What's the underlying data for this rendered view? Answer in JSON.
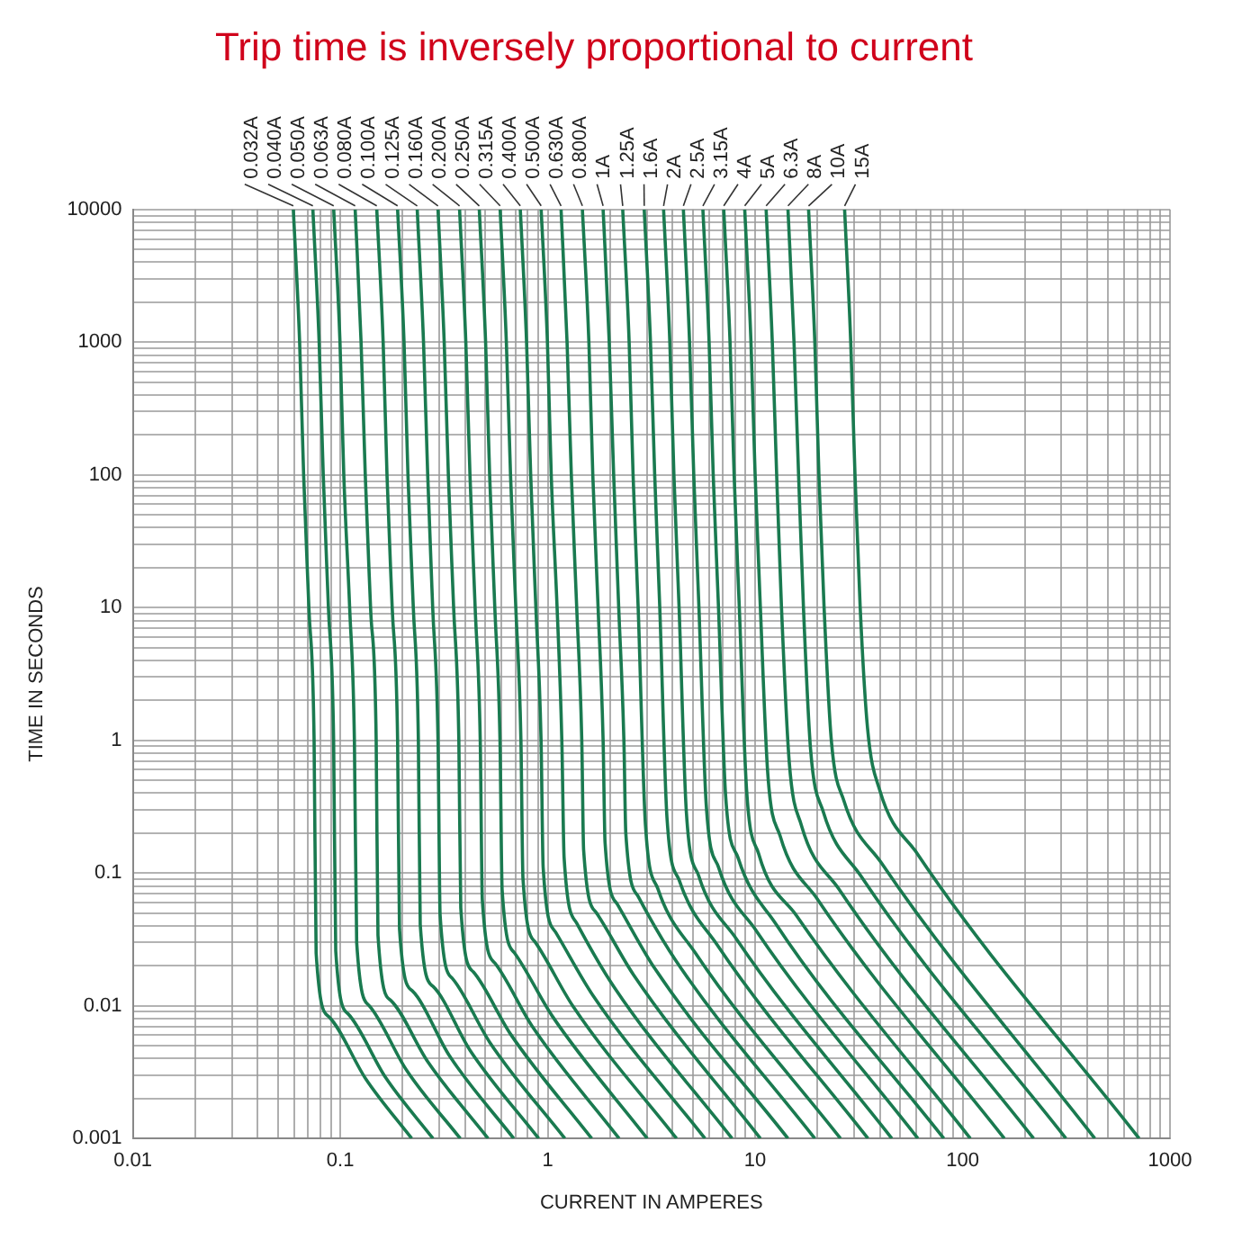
{
  "chart_data": {
    "type": "line",
    "title": "Trip time is inversely proportional to current",
    "xlabel": "CURRENT IN AMPERES",
    "ylabel": "TIME IN SECONDS",
    "log": "xy",
    "grid": true,
    "legend": false,
    "marker": "none",
    "line_style": "solid",
    "xlim": [
      0.01,
      1000
    ],
    "ylim": [
      0.001,
      10000
    ],
    "xticks": [
      0.01,
      {
        "value": 0.02,
        "label": null
      },
      {
        "value": 0.03,
        "label": null
      },
      {
        "value": 0.04,
        "label": null
      },
      {
        "value": 0.05,
        "label": null
      },
      {
        "value": 0.06,
        "label": null
      },
      {
        "value": 0.07,
        "label": null
      },
      {
        "value": 0.08,
        "label": null
      },
      {
        "value": 0.09,
        "label": null
      },
      0.1,
      {
        "value": 0.2,
        "label": null
      },
      {
        "value": 0.3,
        "label": null
      },
      {
        "value": 0.4,
        "label": null
      },
      {
        "value": 0.5,
        "label": null
      },
      {
        "value": 0.6,
        "label": null
      },
      {
        "value": 0.7,
        "label": null
      },
      {
        "value": 0.8,
        "label": null
      },
      {
        "value": 0.9,
        "label": null
      },
      1,
      {
        "value": 2,
        "label": null
      },
      {
        "value": 3,
        "label": null
      },
      {
        "value": 4,
        "label": null
      },
      {
        "value": 5,
        "label": null
      },
      {
        "value": 6,
        "label": null
      },
      {
        "value": 7,
        "label": null
      },
      {
        "value": 8,
        "label": null
      },
      {
        "value": 9,
        "label": null
      },
      10,
      {
        "value": 20,
        "label": null
      },
      {
        "value": 30,
        "label": null
      },
      {
        "value": 40,
        "label": null
      },
      {
        "value": 50,
        "label": null
      },
      {
        "value": 60,
        "label": null
      },
      {
        "value": 70,
        "label": null
      },
      {
        "value": 80,
        "label": null
      },
      {
        "value": 90,
        "label": null
      },
      100,
      {
        "value": 200,
        "label": null
      },
      {
        "value": 300,
        "label": null
      },
      {
        "value": 400,
        "label": null
      },
      {
        "value": 500,
        "label": null
      },
      {
        "value": 600,
        "label": null
      },
      {
        "value": 700,
        "label": null
      },
      {
        "value": 800,
        "label": null
      },
      {
        "value": 900,
        "label": null
      },
      1000
    ],
    "yticks": [
      0.001,
      {
        "value": 0.002,
        "label": null
      },
      {
        "value": 0.003,
        "label": null
      },
      {
        "value": 0.004,
        "label": null
      },
      {
        "value": 0.005,
        "label": null
      },
      {
        "value": 0.006,
        "label": null
      },
      {
        "value": 0.007,
        "label": null
      },
      {
        "value": 0.008,
        "label": null
      },
      {
        "value": 0.009,
        "label": null
      },
      0.01,
      {
        "value": 0.02,
        "label": null
      },
      {
        "value": 0.03,
        "label": null
      },
      {
        "value": 0.04,
        "label": null
      },
      {
        "value": 0.05,
        "label": null
      },
      {
        "value": 0.06,
        "label": null
      },
      {
        "value": 0.07,
        "label": null
      },
      {
        "value": 0.08,
        "label": null
      },
      {
        "value": 0.09,
        "label": null
      },
      0.1,
      {
        "value": 0.2,
        "label": null
      },
      {
        "value": 0.3,
        "label": null
      },
      {
        "value": 0.4,
        "label": null
      },
      {
        "value": 0.5,
        "label": null
      },
      {
        "value": 0.6,
        "label": null
      },
      {
        "value": 0.7,
        "label": null
      },
      {
        "value": 0.8,
        "label": null
      },
      {
        "value": 0.9,
        "label": null
      },
      1,
      {
        "value": 2,
        "label": null
      },
      {
        "value": 3,
        "label": null
      },
      {
        "value": 4,
        "label": null
      },
      {
        "value": 5,
        "label": null
      },
      {
        "value": 6,
        "label": null
      },
      {
        "value": 7,
        "label": null
      },
      {
        "value": 8,
        "label": null
      },
      {
        "value": 9,
        "label": null
      },
      10,
      {
        "value": 20,
        "label": null
      },
      {
        "value": 30,
        "label": null
      },
      {
        "value": 40,
        "label": null
      },
      {
        "value": 50,
        "label": null
      },
      {
        "value": 60,
        "label": null
      },
      {
        "value": 70,
        "label": null
      },
      {
        "value": 80,
        "label": null
      },
      {
        "value": 90,
        "label": null
      },
      100,
      {
        "value": 200,
        "label": null
      },
      {
        "value": 300,
        "label": null
      },
      {
        "value": 400,
        "label": null
      },
      {
        "value": 500,
        "label": null
      },
      {
        "value": 600,
        "label": null
      },
      {
        "value": 700,
        "label": null
      },
      {
        "value": 800,
        "label": null
      },
      {
        "value": 900,
        "label": null
      },
      1000,
      {
        "value": 2000,
        "label": null
      },
      {
        "value": 3000,
        "label": null
      },
      {
        "value": 4000,
        "label": null
      },
      {
        "value": 5000,
        "label": null
      },
      {
        "value": 6000,
        "label": null
      },
      {
        "value": 7000,
        "label": null
      },
      {
        "value": 8000,
        "label": null
      },
      {
        "value": 9000,
        "label": null
      },
      10000
    ],
    "series": [
      {
        "name": "0.032A",
        "color": "#1a7a50",
        "x": [
          0.0594,
          0.0637,
          0.0666,
          0.0706,
          0.0748,
          0.0765,
          0.0879,
          0.133,
          0.221
        ],
        "values": [
          10000,
          1000,
          100,
          10,
          1,
          0.025,
          0.0083,
          0.0028,
          0.001
        ]
      },
      {
        "name": "0.040A",
        "color": "#1a7a50",
        "x": [
          0.0738,
          0.0791,
          0.0828,
          0.0877,
          0.0929,
          0.0951,
          0.109,
          0.165,
          0.28
        ],
        "values": [
          10000,
          1000,
          100,
          10,
          1,
          0.026,
          0.0087,
          0.0029,
          0.001
        ]
      },
      {
        "name": "0.050A",
        "color": "#1a7a50",
        "x": [
          0.093,
          0.0997,
          0.104,
          0.111,
          0.117,
          0.12,
          0.138,
          0.208,
          0.379
        ],
        "values": [
          10000,
          1000,
          100,
          10,
          1,
          0.03,
          0.01,
          0.0033,
          0.001
        ]
      },
      {
        "name": "0.063A",
        "color": "#1a7a50",
        "x": [
          0.118,
          0.126,
          0.132,
          0.14,
          0.149,
          0.152,
          0.175,
          0.264,
          0.516
        ],
        "values": [
          10000,
          1000,
          100,
          10,
          1,
          0.034,
          0.011,
          0.0038,
          0.001
        ]
      },
      {
        "name": "0.080A",
        "color": "#1a7a50",
        "x": [
          0.15,
          0.161,
          0.168,
          0.178,
          0.189,
          0.193,
          0.222,
          0.336,
          0.686
        ],
        "values": [
          10000,
          1000,
          100,
          10,
          1,
          0.038,
          0.013,
          0.0042,
          0.001
        ]
      },
      {
        "name": "0.100A",
        "color": "#1a7a50",
        "x": [
          0.189,
          0.203,
          0.212,
          0.225,
          0.238,
          0.243,
          0.28,
          0.423,
          0.905
        ],
        "values": [
          10000,
          1000,
          100,
          10,
          1,
          0.041,
          0.014,
          0.0046,
          0.001
        ]
      },
      {
        "name": "0.125A",
        "color": "#1a7a50",
        "x": [
          0.235,
          0.252,
          0.264,
          0.279,
          0.296,
          0.303,
          0.348,
          0.526,
          1.21
        ],
        "values": [
          10000,
          1000,
          100,
          10,
          1,
          0.048,
          0.016,
          0.0053,
          0.001
        ]
      },
      {
        "name": "0.160A",
        "color": "#1a7a50",
        "x": [
          0.296,
          0.317,
          0.332,
          0.352,
          0.373,
          0.381,
          0.438,
          0.663,
          1.63
        ],
        "values": [
          10000,
          1000,
          100,
          10,
          1,
          0.055,
          0.018,
          0.0061,
          0.001
        ]
      },
      {
        "name": "0.200A",
        "color": "#1a7a50",
        "x": [
          0.376,
          0.403,
          0.422,
          0.447,
          0.473,
          0.484,
          0.556,
          0.842,
          2.21
        ],
        "values": [
          10000,
          1000,
          100,
          10,
          1,
          0.063,
          0.021,
          0.007,
          0.001
        ]
      },
      {
        "name": "0.250A",
        "color": "#1a7a50",
        "x": [
          0.468,
          0.502,
          0.525,
          0.556,
          0.589,
          0.603,
          0.692,
          1.05,
          3.02
        ],
        "values": [
          10000,
          1000,
          100,
          10,
          1,
          0.075,
          0.025,
          0.0084,
          0.001
        ]
      },
      {
        "name": "0.315A",
        "color": "#1a7a50",
        "x": [
          0.59,
          0.632,
          0.662,
          0.702,
          0.743,
          0.76,
          0.873,
          1.32,
          4.18
        ],
        "values": [
          10000,
          1000,
          100,
          10,
          1,
          0.091,
          0.03,
          0.01,
          0.001
        ]
      },
      {
        "name": "0.400A",
        "color": "#1a7a50",
        "x": [
          0.738,
          0.791,
          0.828,
          0.877,
          0.929,
          0.951,
          1.09,
          1.65,
          5.73
        ],
        "values": [
          10000,
          1000,
          100,
          10,
          1,
          0.11,
          0.036,
          0.012,
          0.001
        ]
      },
      {
        "name": "0.500A",
        "color": "#1a7a50",
        "x": [
          0.93,
          0.997,
          1.04,
          1.11,
          1.17,
          1.2,
          1.38,
          2.08,
          7.74
        ],
        "values": [
          10000,
          1000,
          100,
          10,
          1,
          0.13,
          0.042,
          0.014,
          0.001
        ]
      },
      {
        "name": "0.630A",
        "color": "#1a7a50",
        "x": [
          1.16,
          1.24,
          1.3,
          1.38,
          1.46,
          1.49,
          1.72,
          2.6,
          10.6
        ],
        "values": [
          10000,
          1000,
          100,
          10,
          1,
          0.15,
          0.05,
          0.017,
          0.001
        ]
      },
      {
        "name": "0.800A",
        "color": "#1a7a50",
        "x": [
          1.47,
          1.58,
          1.65,
          1.75,
          1.85,
          1.89,
          2.17,
          3.29,
          14.4
        ],
        "values": [
          10000,
          1000,
          100,
          10,
          1,
          0.17,
          0.058,
          0.019,
          0.001
        ]
      },
      {
        "name": "1A",
        "color": "#1a7a50",
        "x": [
          1.85,
          1.98,
          2.08,
          2.2,
          2.33,
          2.38,
          2.74,
          4.14,
          19.4
        ],
        "values": [
          10000,
          1000,
          100,
          10,
          1,
          0.2,
          0.066,
          0.022,
          0.001
        ]
      },
      {
        "name": "1.25A",
        "color": "#1a7a50",
        "x": [
          2.3,
          2.47,
          2.58,
          2.73,
          2.96,
          3.4,
          5.15,
          25.8
        ],
        "values": [
          10000,
          1000,
          100,
          10,
          0.23,
          0.076,
          0.025,
          0.001
        ]
      },
      {
        "name": "1.6A",
        "color": "#1a7a50",
        "x": [
          2.92,
          3.13,
          3.28,
          3.47,
          3.76,
          4.32,
          6.54,
          35
        ],
        "values": [
          10000,
          1000,
          100,
          10,
          0.26,
          0.087,
          0.029,
          0.001
        ]
      },
      {
        "name": "2A",
        "color": "#1a7a50",
        "x": [
          3.62,
          3.88,
          4.06,
          4.3,
          4.66,
          5.35,
          8.11,
          45.6
        ],
        "values": [
          10000,
          1000,
          100,
          10,
          0.29,
          0.095,
          0.032,
          0.001
        ]
      },
      {
        "name": "2.5A",
        "color": "#1a7a50",
        "x": [
          4.51,
          4.83,
          5.06,
          5.36,
          5.81,
          6.67,
          10.1,
          60.9
        ],
        "values": [
          10000,
          1000,
          100,
          10,
          0.33,
          0.11,
          0.037,
          0.001
        ]
      },
      {
        "name": "3.15A",
        "color": "#1a7a50",
        "x": [
          5.6,
          6,
          6.28,
          6.66,
          7.21,
          8.28,
          12.5,
          81.2
        ],
        "values": [
          10000,
          1000,
          100,
          10,
          0.38,
          0.13,
          0.042,
          0.001
        ]
      },
      {
        "name": "4A",
        "color": "#1a7a50",
        "x": [
          7.06,
          7.57,
          7.92,
          8.39,
          9.09,
          10.4,
          15.8,
          109
        ],
        "values": [
          10000,
          1000,
          100,
          10,
          0.43,
          0.14,
          0.048,
          0.001
        ]
      },
      {
        "name": "5A",
        "color": "#1a7a50",
        "x": [
          8.91,
          9.55,
          10,
          10.6,
          11.5,
          13.2,
          19.9,
          159
        ],
        "values": [
          10000,
          1000,
          100,
          10,
          0.57,
          0.19,
          0.064,
          0.001
        ]
      },
      {
        "name": "6.3A",
        "color": "#1a7a50",
        "x": [
          11.3,
          12.1,
          12.7,
          13.4,
          14.6,
          16.7,
          25.3,
          220
        ],
        "values": [
          10000,
          1000,
          100,
          10,
          0.69,
          0.23,
          0.076,
          0.001
        ]
      },
      {
        "name": "8A",
        "color": "#1a7a50",
        "x": [
          14.4,
          15.4,
          16.2,
          17.1,
          18.5,
          21.3,
          32.2,
          315
        ],
        "values": [
          10000,
          1000,
          100,
          10,
          0.86,
          0.29,
          0.096,
          0.001
        ]
      },
      {
        "name": "10A",
        "color": "#1a7a50",
        "x": [
          18.1,
          19.4,
          20.3,
          21.5,
          23.3,
          26.8,
          40.5,
          434
        ],
        "values": [
          10000,
          1000,
          100,
          10,
          1,
          0.35,
          0.12,
          0.001
        ]
      },
      {
        "name": "15A",
        "color": "#1a7a50",
        "x": [
          27,
          28.9,
          30.3,
          32.1,
          34.8,
          39.9,
          60.5,
          710
        ],
        "values": [
          10000,
          1000,
          100,
          10,
          1.25,
          0.42,
          0.14,
          0.001
        ]
      }
    ]
  }
}
